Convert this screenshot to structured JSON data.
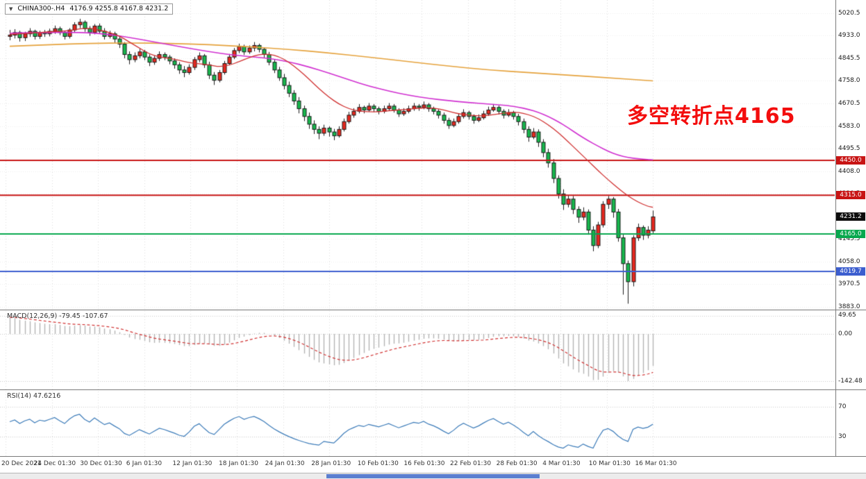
{
  "window": {
    "symbol": "CHINA300-.H4",
    "ohlc_line": "4176.9 4255.8 4167.8 4231.2",
    "dropdown_icon": "▼"
  },
  "annotation": {
    "text": "多空转折点4165",
    "color": "#f30d0d"
  },
  "colors": {
    "up": "#e8281e",
    "down": "#17b84d",
    "wick": "#1a1a1a",
    "ma_fast": "#cf2e2e",
    "ma_mid": "#d02fd0",
    "ma_slow": "#e5a23c",
    "macd_hist": "#b4b4b4",
    "macd_signal": "#d03030",
    "rsi": "#3a7ab8",
    "grid": "#dcdcdc",
    "tag_current_bg": "#0d0d0d"
  },
  "chart_data": {
    "type": "candlestick",
    "symbol": "CHINA300-.H4",
    "timeframe": "H4",
    "ohlc_current": {
      "open": 4176.9,
      "high": 4255.8,
      "low": 4167.8,
      "close": 4231.2
    },
    "price_axis_labels": [
      {
        "text": "5020.5",
        "price": 5020.5
      },
      {
        "text": "4933.0",
        "price": 4933.0
      },
      {
        "text": "4845.5",
        "price": 4845.5
      },
      {
        "text": "4758.0",
        "price": 4758.0
      },
      {
        "text": "4670.5",
        "price": 4670.5
      },
      {
        "text": "4583.0",
        "price": 4583.0
      },
      {
        "text": "4495.5",
        "price": 4495.5
      },
      {
        "text": "4408.0",
        "price": 4408.0
      },
      {
        "text": "4320.5",
        "price": 4320.5
      },
      {
        "text": "4145.5",
        "price": 4145.5
      },
      {
        "text": "4058.0",
        "price": 4058.0
      },
      {
        "text": "3970.5",
        "price": 3970.5
      },
      {
        "text": "3883.0",
        "price": 3883.0
      }
    ],
    "current_price_tag": {
      "text": "4231.2",
      "price": 4231.2
    },
    "horizontal_lines": [
      {
        "text": "4450.0",
        "price": 4450.0,
        "color": "#c81414"
      },
      {
        "text": "4315.0",
        "price": 4315.0,
        "color": "#c81414"
      },
      {
        "text": "4165.0",
        "price": 4165.0,
        "color": "#08a84e"
      },
      {
        "text": "4019.7",
        "price": 4019.7,
        "color": "#3c5ecf"
      }
    ],
    "x_labels": [
      "20 Dec 2021",
      "24 Dec 01:30",
      "30 Dec 01:30",
      "6 Jan 01:30",
      "12 Jan 01:30",
      "18 Jan 01:30",
      "24 Jan 01:30",
      "28 Jan 01:30",
      "10 Feb 01:30",
      "16 Feb 01:30",
      "22 Feb 01:30",
      "28 Feb 01:30",
      "4 Mar 01:30",
      "10 Mar 01:30",
      "16 Mar 01:30"
    ],
    "candles": [
      [
        4930,
        4955,
        4915,
        4935
      ],
      [
        4935,
        4958,
        4922,
        4945
      ],
      [
        4945,
        4952,
        4910,
        4925
      ],
      [
        4925,
        4948,
        4912,
        4940
      ],
      [
        4940,
        4962,
        4928,
        4950
      ],
      [
        4950,
        4956,
        4918,
        4930
      ],
      [
        4930,
        4952,
        4920,
        4945
      ],
      [
        4945,
        4955,
        4928,
        4940
      ],
      [
        4940,
        4960,
        4930,
        4950
      ],
      [
        4950,
        4972,
        4940,
        4960
      ],
      [
        4960,
        4968,
        4935,
        4945
      ],
      [
        4945,
        4952,
        4918,
        4930
      ],
      [
        4930,
        4962,
        4922,
        4955
      ],
      [
        4955,
        4985,
        4945,
        4975
      ],
      [
        4975,
        4998,
        4962,
        4985
      ],
      [
        4985,
        4992,
        4948,
        4960
      ],
      [
        4960,
        4970,
        4932,
        4945
      ],
      [
        4945,
        4978,
        4938,
        4970
      ],
      [
        4970,
        4980,
        4940,
        4950
      ],
      [
        4950,
        4962,
        4918,
        4930
      ],
      [
        4930,
        4952,
        4922,
        4940
      ],
      [
        4940,
        4948,
        4905,
        4920
      ],
      [
        4920,
        4932,
        4885,
        4900
      ],
      [
        4900,
        4908,
        4845,
        4860
      ],
      [
        4860,
        4872,
        4822,
        4840
      ],
      [
        4840,
        4868,
        4830,
        4855
      ],
      [
        4855,
        4882,
        4845,
        4870
      ],
      [
        4870,
        4878,
        4838,
        4850
      ],
      [
        4850,
        4860,
        4815,
        4830
      ],
      [
        4830,
        4855,
        4820,
        4845
      ],
      [
        4845,
        4872,
        4835,
        4860
      ],
      [
        4860,
        4868,
        4838,
        4850
      ],
      [
        4850,
        4858,
        4822,
        4835
      ],
      [
        4835,
        4845,
        4805,
        4820
      ],
      [
        4820,
        4830,
        4785,
        4800
      ],
      [
        4800,
        4815,
        4772,
        4790
      ],
      [
        4790,
        4822,
        4782,
        4810
      ],
      [
        4810,
        4850,
        4800,
        4840
      ],
      [
        4840,
        4868,
        4830,
        4855
      ],
      [
        4855,
        4862,
        4808,
        4820
      ],
      [
        4820,
        4832,
        4765,
        4780
      ],
      [
        4780,
        4792,
        4742,
        4760
      ],
      [
        4760,
        4800,
        4752,
        4790
      ],
      [
        4790,
        4835,
        4782,
        4825
      ],
      [
        4825,
        4862,
        4818,
        4850
      ],
      [
        4850,
        4885,
        4842,
        4875
      ],
      [
        4875,
        4902,
        4865,
        4890
      ],
      [
        4890,
        4898,
        4858,
        4870
      ],
      [
        4870,
        4895,
        4862,
        4885
      ],
      [
        4885,
        4908,
        4872,
        4895
      ],
      [
        4895,
        4902,
        4868,
        4880
      ],
      [
        4880,
        4888,
        4848,
        4860
      ],
      [
        4860,
        4870,
        4818,
        4830
      ],
      [
        4830,
        4842,
        4788,
        4800
      ],
      [
        4800,
        4812,
        4758,
        4770
      ],
      [
        4770,
        4785,
        4725,
        4740
      ],
      [
        4740,
        4755,
        4695,
        4710
      ],
      [
        4710,
        4722,
        4665,
        4680
      ],
      [
        4680,
        4695,
        4632,
        4650
      ],
      [
        4650,
        4662,
        4602,
        4620
      ],
      [
        4620,
        4635,
        4572,
        4590
      ],
      [
        4590,
        4605,
        4552,
        4570
      ],
      [
        4570,
        4582,
        4532,
        4555
      ],
      [
        4555,
        4588,
        4545,
        4575
      ],
      [
        4575,
        4582,
        4542,
        4560
      ],
      [
        4560,
        4572,
        4528,
        4545
      ],
      [
        4545,
        4582,
        4538,
        4570
      ],
      [
        4570,
        4612,
        4562,
        4600
      ],
      [
        4600,
        4638,
        4592,
        4625
      ],
      [
        4625,
        4652,
        4615,
        4640
      ],
      [
        4640,
        4668,
        4632,
        4655
      ],
      [
        4655,
        4662,
        4632,
        4645
      ],
      [
        4645,
        4672,
        4638,
        4660
      ],
      [
        4660,
        4668,
        4638,
        4650
      ],
      [
        4650,
        4658,
        4628,
        4640
      ],
      [
        4640,
        4662,
        4632,
        4650
      ],
      [
        4650,
        4672,
        4642,
        4660
      ],
      [
        4660,
        4668,
        4635,
        4645
      ],
      [
        4645,
        4652,
        4618,
        4630
      ],
      [
        4630,
        4652,
        4622,
        4640
      ],
      [
        4640,
        4662,
        4632,
        4650
      ],
      [
        4650,
        4672,
        4642,
        4660
      ],
      [
        4660,
        4668,
        4642,
        4655
      ],
      [
        4655,
        4678,
        4648,
        4665
      ],
      [
        4665,
        4672,
        4638,
        4650
      ],
      [
        4650,
        4658,
        4628,
        4640
      ],
      [
        4640,
        4648,
        4612,
        4625
      ],
      [
        4625,
        4635,
        4592,
        4605
      ],
      [
        4605,
        4615,
        4572,
        4585
      ],
      [
        4585,
        4612,
        4578,
        4600
      ],
      [
        4600,
        4632,
        4592,
        4620
      ],
      [
        4620,
        4648,
        4612,
        4635
      ],
      [
        4635,
        4642,
        4608,
        4620
      ],
      [
        4620,
        4628,
        4592,
        4605
      ],
      [
        4605,
        4628,
        4598,
        4615
      ],
      [
        4615,
        4642,
        4608,
        4630
      ],
      [
        4630,
        4658,
        4622,
        4645
      ],
      [
        4645,
        4668,
        4638,
        4655
      ],
      [
        4655,
        4662,
        4628,
        4640
      ],
      [
        4640,
        4648,
        4612,
        4625
      ],
      [
        4625,
        4648,
        4618,
        4635
      ],
      [
        4635,
        4642,
        4608,
        4620
      ],
      [
        4620,
        4630,
        4585,
        4600
      ],
      [
        4600,
        4612,
        4555,
        4570
      ],
      [
        4570,
        4582,
        4522,
        4540
      ],
      [
        4540,
        4575,
        4532,
        4560
      ],
      [
        4560,
        4570,
        4502,
        4520
      ],
      [
        4520,
        4532,
        4462,
        4480
      ],
      [
        4480,
        4495,
        4422,
        4440
      ],
      [
        4440,
        4455,
        4362,
        4380
      ],
      [
        4380,
        4392,
        4302,
        4320
      ],
      [
        4320,
        4338,
        4258,
        4280
      ],
      [
        4280,
        4315,
        4268,
        4300
      ],
      [
        4300,
        4312,
        4242,
        4260
      ],
      [
        4260,
        4272,
        4208,
        4230
      ],
      [
        4230,
        4268,
        4218,
        4250
      ],
      [
        4250,
        4260,
        4162,
        4180
      ],
      [
        4180,
        4195,
        4098,
        4120
      ],
      [
        4120,
        4212,
        4110,
        4200
      ],
      [
        4200,
        4292,
        4190,
        4280
      ],
      [
        4280,
        4312,
        4262,
        4300
      ],
      [
        4300,
        4308,
        4228,
        4250
      ],
      [
        4250,
        4262,
        4135,
        4150
      ],
      [
        4150,
        4162,
        3930,
        4050
      ],
      [
        4050,
        4062,
        3895,
        3980
      ],
      [
        3980,
        4160,
        3962,
        4150
      ],
      [
        4150,
        4205,
        4138,
        4190
      ],
      [
        4190,
        4198,
        4142,
        4160
      ],
      [
        4160,
        4195,
        4148,
        4180
      ],
      [
        4176.9,
        4255.8,
        4167.8,
        4231.2
      ]
    ],
    "moving_averages": [
      {
        "name": "ma-fast",
        "color_key": "ma_fast",
        "points": [
          [
            0,
            4938
          ],
          [
            4,
            4942
          ],
          [
            8,
            4948
          ],
          [
            12,
            4952
          ],
          [
            14,
            4960
          ],
          [
            16,
            4962
          ],
          [
            18,
            4955
          ],
          [
            20,
            4945
          ],
          [
            22,
            4932
          ],
          [
            24,
            4908
          ],
          [
            26,
            4885
          ],
          [
            28,
            4862
          ],
          [
            30,
            4850
          ],
          [
            32,
            4845
          ],
          [
            34,
            4838
          ],
          [
            36,
            4828
          ],
          [
            38,
            4824
          ],
          [
            40,
            4820
          ],
          [
            42,
            4812
          ],
          [
            44,
            4818
          ],
          [
            46,
            4832
          ],
          [
            48,
            4848
          ],
          [
            50,
            4860
          ],
          [
            52,
            4862
          ],
          [
            54,
            4852
          ],
          [
            56,
            4830
          ],
          [
            58,
            4800
          ],
          [
            60,
            4765
          ],
          [
            62,
            4728
          ],
          [
            64,
            4695
          ],
          [
            66,
            4668
          ],
          [
            68,
            4650
          ],
          [
            70,
            4640
          ],
          [
            72,
            4638
          ],
          [
            74,
            4638
          ],
          [
            76,
            4642
          ],
          [
            78,
            4645
          ],
          [
            80,
            4648
          ],
          [
            82,
            4652
          ],
          [
            84,
            4654
          ],
          [
            86,
            4650
          ],
          [
            88,
            4640
          ],
          [
            90,
            4630
          ],
          [
            92,
            4625
          ],
          [
            94,
            4622
          ],
          [
            96,
            4624
          ],
          [
            98,
            4630
          ],
          [
            100,
            4635
          ],
          [
            102,
            4636
          ],
          [
            104,
            4628
          ],
          [
            106,
            4612
          ],
          [
            108,
            4588
          ],
          [
            110,
            4558
          ],
          [
            112,
            4522
          ],
          [
            114,
            4485
          ],
          [
            116,
            4448
          ],
          [
            118,
            4410
          ],
          [
            120,
            4375
          ],
          [
            122,
            4342
          ],
          [
            124,
            4312
          ],
          [
            126,
            4288
          ],
          [
            128,
            4272
          ],
          [
            129,
            4268
          ]
        ]
      },
      {
        "name": "ma-medium",
        "color_key": "ma_mid",
        "points": [
          [
            0,
            4942
          ],
          [
            6,
            4945
          ],
          [
            12,
            4946
          ],
          [
            16,
            4944
          ],
          [
            20,
            4938
          ],
          [
            24,
            4926
          ],
          [
            28,
            4912
          ],
          [
            32,
            4898
          ],
          [
            36,
            4884
          ],
          [
            40,
            4871
          ],
          [
            44,
            4860
          ],
          [
            48,
            4852
          ],
          [
            52,
            4845
          ],
          [
            56,
            4832
          ],
          [
            60,
            4812
          ],
          [
            64,
            4788
          ],
          [
            68,
            4762
          ],
          [
            72,
            4738
          ],
          [
            76,
            4718
          ],
          [
            80,
            4702
          ],
          [
            84,
            4690
          ],
          [
            88,
            4681
          ],
          [
            92,
            4674
          ],
          [
            96,
            4668
          ],
          [
            100,
            4662
          ],
          [
            102,
            4656
          ],
          [
            104,
            4648
          ],
          [
            106,
            4636
          ],
          [
            108,
            4620
          ],
          [
            110,
            4600
          ],
          [
            112,
            4576
          ],
          [
            114,
            4550
          ],
          [
            116,
            4526
          ],
          [
            118,
            4505
          ],
          [
            120,
            4485
          ],
          [
            122,
            4470
          ],
          [
            124,
            4461
          ],
          [
            126,
            4456
          ],
          [
            128,
            4453
          ],
          [
            129,
            4452
          ]
        ]
      },
      {
        "name": "ma-slow",
        "color_key": "ma_slow",
        "points": [
          [
            0,
            4892
          ],
          [
            8,
            4898
          ],
          [
            16,
            4903
          ],
          [
            24,
            4905
          ],
          [
            32,
            4903
          ],
          [
            40,
            4898
          ],
          [
            48,
            4890
          ],
          [
            56,
            4880
          ],
          [
            64,
            4866
          ],
          [
            72,
            4850
          ],
          [
            80,
            4832
          ],
          [
            88,
            4815
          ],
          [
            96,
            4800
          ],
          [
            104,
            4790
          ],
          [
            112,
            4780
          ],
          [
            120,
            4770
          ],
          [
            129,
            4758
          ]
        ]
      }
    ],
    "macd": {
      "label": "MACD(12,26,9) -79.45 -107.67",
      "params": {
        "fast": 12,
        "slow": 26,
        "signal": 9
      },
      "main_value": -79.45,
      "signal_value": -107.67,
      "axis": [
        {
          "text": "49.65",
          "value": 49.65
        },
        {
          "text": "0.00",
          "value": 0
        },
        {
          "text": "-142.48",
          "value": -142.48
        }
      ]
    },
    "rsi": {
      "label": "RSI(14) 47.6216",
      "period": 14,
      "value": 47.6216,
      "axis": [
        {
          "text": "70",
          "value": 70
        },
        {
          "text": "30",
          "value": 30
        }
      ]
    }
  }
}
